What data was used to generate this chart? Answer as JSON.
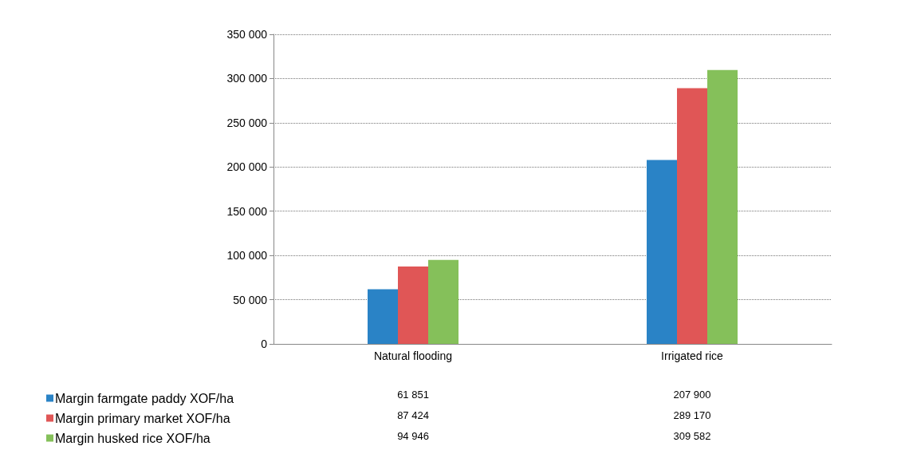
{
  "chart_data": {
    "type": "bar",
    "categories": [
      "Natural flooding",
      "Irrigated rice"
    ],
    "series": [
      {
        "name": "Margin farmgate paddy XOF/ha",
        "color": "#2a83c6",
        "values": [
          61851,
          207900
        ],
        "value_labels": [
          "61 851",
          "207 900"
        ]
      },
      {
        "name": "Margin primary market XOF/ha",
        "color": "#e05656",
        "values": [
          87424,
          289170
        ],
        "value_labels": [
          "87 424",
          "289 170"
        ]
      },
      {
        "name": "Margin husked rice XOF/ha",
        "color": "#85c05a",
        "values": [
          94946,
          309582
        ],
        "value_labels": [
          "94 946",
          "309 582"
        ]
      }
    ],
    "ylim": [
      0,
      350000
    ],
    "yticks": [
      {
        "value": 0,
        "label": "0"
      },
      {
        "value": 50000,
        "label": "50 000"
      },
      {
        "value": 100000,
        "label": "100 000"
      },
      {
        "value": 150000,
        "label": "150 000"
      },
      {
        "value": 200000,
        "label": "200 000"
      },
      {
        "value": 250000,
        "label": "250 000"
      },
      {
        "value": 300000,
        "label": "300 000"
      },
      {
        "value": 350000,
        "label": "350 000"
      }
    ],
    "grid": "y",
    "legend": "bottom left"
  }
}
